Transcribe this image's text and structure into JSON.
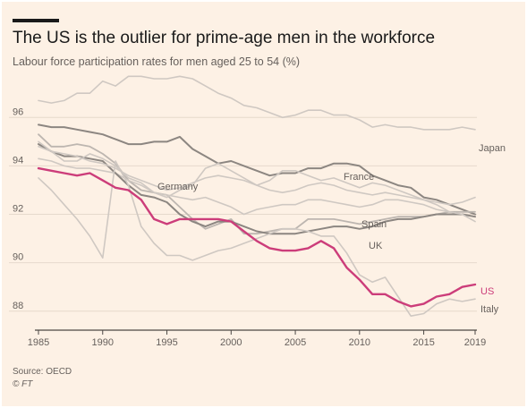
{
  "header": {
    "title": "The US is the outlier for prime-age men in the workforce",
    "subtitle": "Labour force participation rates for men aged 25 to 54 (%)"
  },
  "footer": {
    "source": "Source: OECD",
    "credit": "© FT"
  },
  "colors": {
    "background": "#fdf1e5",
    "grid": "#e6d9cc",
    "axis_text": "#66605c",
    "us_line": "#cc3d7a",
    "gray_light": "#cfc8c2",
    "gray_mid": "#bdb6b0",
    "gray_dark": "#8c8681"
  },
  "chart_data": {
    "type": "line",
    "title": "The US is the outlier for prime-age men in the workforce",
    "subtitle": "Labour force participation rates for men aged 25 to 54 (%)",
    "xlabel": "",
    "ylabel": "",
    "xlim": [
      1985,
      2019
    ],
    "ylim": [
      87.4,
      97.6
    ],
    "x_ticks": [
      "1985",
      "1990",
      "1995",
      "2000",
      "2005",
      "2010",
      "2015",
      "2019"
    ],
    "y_ticks": [
      "88",
      "90",
      "92",
      "94",
      "96"
    ],
    "grid": "horizontal",
    "legend": "direct labels at line ends",
    "x": [
      1985,
      1986,
      1987,
      1988,
      1989,
      1990,
      1991,
      1992,
      1993,
      1994,
      1995,
      1996,
      1997,
      1998,
      1999,
      2000,
      2001,
      2002,
      2003,
      2004,
      2005,
      2006,
      2007,
      2008,
      2009,
      2010,
      2011,
      2012,
      2013,
      2014,
      2015,
      2016,
      2017,
      2018,
      2019
    ],
    "series": [
      {
        "name": "Japan",
        "label_shown": true,
        "tone": "light",
        "values": [
          96.7,
          96.6,
          96.7,
          97.0,
          97.0,
          97.5,
          97.3,
          97.7,
          97.7,
          97.6,
          97.6,
          97.7,
          97.6,
          97.3,
          97.0,
          96.8,
          96.5,
          96.4,
          96.2,
          96.0,
          96.1,
          96.3,
          96.3,
          96.1,
          96.1,
          95.9,
          95.6,
          95.7,
          95.6,
          95.6,
          95.5,
          95.5,
          95.5,
          95.6,
          95.5
        ]
      },
      {
        "name": "France",
        "label_shown": true,
        "tone": "dark",
        "values": [
          95.7,
          95.6,
          95.6,
          95.5,
          95.4,
          95.3,
          95.1,
          94.9,
          94.9,
          95.0,
          95.0,
          95.2,
          94.7,
          94.4,
          94.1,
          94.2,
          94.0,
          93.8,
          93.6,
          93.7,
          93.7,
          93.9,
          93.9,
          94.1,
          94.1,
          94.0,
          93.6,
          93.4,
          93.2,
          93.1,
          92.7,
          92.6,
          92.4,
          92.2,
          92.0
        ]
      },
      {
        "name": "Germany",
        "label_shown": true,
        "tone": "mid",
        "values": [
          95.3,
          94.8,
          94.8,
          94.9,
          94.8,
          94.5,
          94.1,
          93.4,
          93.0,
          92.9,
          92.8,
          92.3,
          91.8,
          91.4,
          91.6,
          91.8,
          91.2,
          91.2,
          91.3,
          91.4,
          91.4,
          91.8,
          91.8,
          91.8,
          91.7,
          91.6,
          91.7,
          91.8,
          91.9,
          91.9,
          91.9,
          92.0,
          92.1,
          92.1,
          92.1
        ]
      },
      {
        "name": "Spain",
        "label_shown": true,
        "tone": "light",
        "values": [
          94.3,
          94.2,
          94.0,
          93.9,
          93.9,
          93.8,
          93.7,
          93.4,
          93.2,
          92.9,
          92.8,
          92.7,
          92.6,
          92.7,
          92.5,
          92.3,
          92.0,
          92.2,
          92.3,
          92.4,
          92.4,
          92.6,
          92.6,
          92.5,
          92.4,
          92.3,
          92.4,
          92.6,
          92.6,
          92.5,
          92.4,
          92.2,
          92.1,
          92.0,
          91.9
        ]
      },
      {
        "name": "UK",
        "label_shown": true,
        "tone": "dark",
        "values": [
          94.9,
          94.6,
          94.4,
          94.4,
          94.3,
          94.2,
          93.7,
          93.2,
          92.8,
          92.7,
          92.5,
          92.0,
          91.7,
          91.5,
          91.7,
          91.7,
          91.5,
          91.3,
          91.2,
          91.2,
          91.2,
          91.3,
          91.4,
          91.5,
          91.5,
          91.4,
          91.5,
          91.7,
          91.8,
          91.8,
          91.9,
          92.0,
          92.0,
          92.0,
          91.9
        ]
      },
      {
        "name": "Italy",
        "label_shown": true,
        "tone": "light",
        "values": [
          93.5,
          93.0,
          92.4,
          91.8,
          91.1,
          90.2,
          94.2,
          93.2,
          91.5,
          90.8,
          90.3,
          90.3,
          90.1,
          90.3,
          90.5,
          90.6,
          90.8,
          91.0,
          91.2,
          91.4,
          91.4,
          91.3,
          91.1,
          91.1,
          90.4,
          89.5,
          89.2,
          89.4,
          88.6,
          87.8,
          87.9,
          88.3,
          88.5,
          88.4,
          88.5
        ]
      },
      {
        "name": "",
        "label_shown": false,
        "tone": "light",
        "values": [
          95.0,
          94.6,
          94.2,
          94.2,
          94.5,
          94.3,
          94.0,
          93.5,
          93.3,
          92.9,
          92.7,
          93.0,
          93.2,
          93.9,
          94.1,
          93.8,
          93.5,
          93.2,
          93.4,
          93.8,
          93.8,
          93.6,
          93.4,
          93.5,
          93.3,
          93.1,
          93.3,
          93.2,
          93.0,
          92.8,
          92.6,
          92.4,
          92.1,
          92.0,
          91.7
        ]
      },
      {
        "name": "",
        "label_shown": false,
        "tone": "light",
        "values": [
          94.8,
          94.6,
          94.5,
          94.4,
          94.2,
          94.1,
          93.9,
          93.6,
          93.4,
          93.2,
          93.0,
          93.1,
          93.3,
          93.5,
          93.6,
          93.5,
          93.4,
          93.2,
          93.0,
          92.9,
          93.0,
          93.2,
          93.3,
          93.2,
          93.0,
          92.9,
          92.8,
          92.9,
          92.8,
          92.7,
          92.6,
          92.5,
          92.4,
          92.5,
          92.7
        ]
      },
      {
        "name": "US",
        "label_shown": true,
        "tone": "us",
        "values": [
          93.9,
          93.8,
          93.7,
          93.6,
          93.7,
          93.4,
          93.1,
          93.0,
          92.6,
          91.8,
          91.6,
          91.8,
          91.8,
          91.8,
          91.8,
          91.7,
          91.3,
          90.9,
          90.6,
          90.5,
          90.5,
          90.6,
          90.9,
          90.6,
          89.8,
          89.3,
          88.7,
          88.7,
          88.4,
          88.2,
          88.3,
          88.6,
          88.7,
          89.0,
          89.1
        ]
      }
    ]
  }
}
